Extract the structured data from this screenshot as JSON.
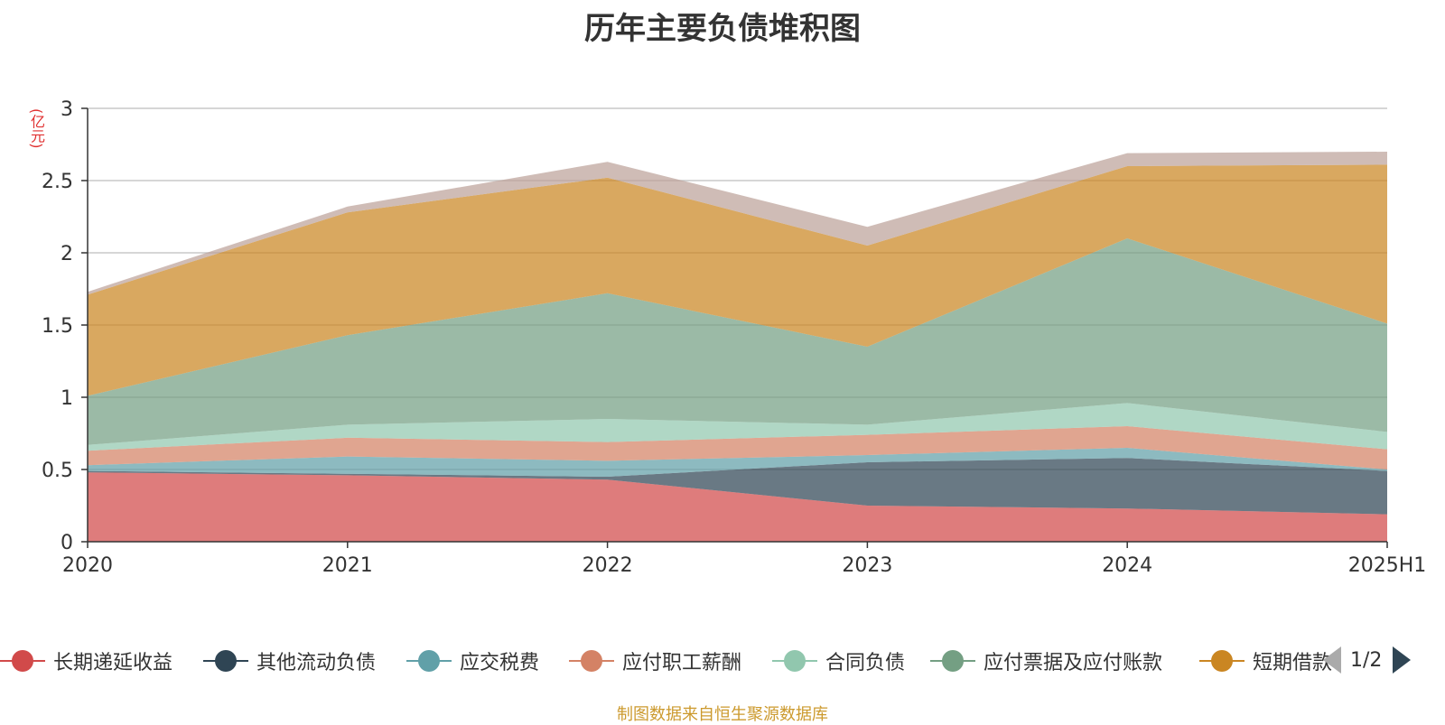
{
  "chart_data": {
    "type": "area",
    "title": "历年主要负债堆积图",
    "ylabel": "(亿元)",
    "categories": [
      "2020",
      "2021",
      "2022",
      "2023",
      "2024",
      "2025H1"
    ],
    "ylim": [
      0,
      3
    ],
    "yticks": [
      "0",
      "0.5",
      "1",
      "1.5",
      "2",
      "2.5",
      "3"
    ],
    "stacked": true,
    "grid": true,
    "series": [
      {
        "name": "长期递延收益",
        "color": "#d14a4a",
        "values": [
          0.48,
          0.46,
          0.43,
          0.25,
          0.23,
          0.19
        ]
      },
      {
        "name": "其他流动负债",
        "color": "#2f4554",
        "values": [
          0.01,
          0.01,
          0.02,
          0.3,
          0.35,
          0.3
        ]
      },
      {
        "name": "应交税费",
        "color": "#61a0a8",
        "values": [
          0.04,
          0.12,
          0.11,
          0.05,
          0.07,
          0.01
        ]
      },
      {
        "name": "应付职工薪酬",
        "color": "#d48265",
        "values": [
          0.1,
          0.13,
          0.13,
          0.14,
          0.15,
          0.14
        ]
      },
      {
        "name": "合同负债",
        "color": "#91c7ae",
        "values": [
          0.04,
          0.09,
          0.16,
          0.07,
          0.16,
          0.12
        ]
      },
      {
        "name": "应付票据及应付账款",
        "color": "#749f83",
        "values": [
          0.34,
          0.62,
          0.87,
          0.54,
          1.14,
          0.75
        ]
      },
      {
        "name": "短期借款",
        "color": "#ca8622",
        "values": [
          0.7,
          0.85,
          0.8,
          0.7,
          0.5,
          1.1
        ]
      },
      {
        "name": "",
        "color": "#bda29a",
        "values": [
          0.02,
          0.04,
          0.11,
          0.13,
          0.09,
          0.09
        ]
      }
    ],
    "legend_position": "bottom"
  },
  "legend": {
    "page_text": "1/2"
  },
  "footer": {
    "source": "制图数据来自恒生聚源数据库"
  }
}
